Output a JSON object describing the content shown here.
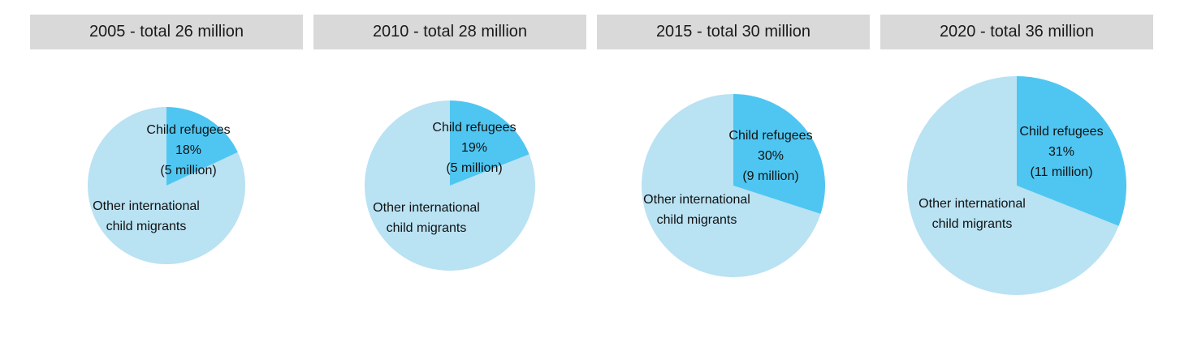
{
  "colors": {
    "refugees": "#4fc6f1",
    "other": "#b9e2f3",
    "header_bg": "#d9d9d9"
  },
  "chart_data": [
    {
      "type": "pie",
      "title": "2005 - total 26 million",
      "total_million": 26,
      "slices": [
        {
          "label_lines": [
            "Child refugees",
            "18%",
            "(5 million)"
          ],
          "percent": 18,
          "value_million": 5
        },
        {
          "label_lines": [
            "Other international",
            "child migrants"
          ],
          "percent": 82
        }
      ]
    },
    {
      "type": "pie",
      "title": "2010 - total 28 million",
      "total_million": 28,
      "slices": [
        {
          "label_lines": [
            "Child refugees",
            "19%",
            "(5 million)"
          ],
          "percent": 19,
          "value_million": 5
        },
        {
          "label_lines": [
            "Other international",
            "child migrants"
          ],
          "percent": 81
        }
      ]
    },
    {
      "type": "pie",
      "title": "2015 - total 30 million",
      "total_million": 30,
      "slices": [
        {
          "label_lines": [
            "Child refugees",
            "30%",
            "(9 million)"
          ],
          "percent": 30,
          "value_million": 9
        },
        {
          "label_lines": [
            "Other international",
            "child migrants"
          ],
          "percent": 70
        }
      ]
    },
    {
      "type": "pie",
      "title": "2020 - total 36 million",
      "total_million": 36,
      "slices": [
        {
          "label_lines": [
            "Child refugees",
            "31%",
            "(11 million)"
          ],
          "percent": 31,
          "value_million": 11
        },
        {
          "label_lines": [
            "Other international",
            "child migrants"
          ],
          "percent": 69
        }
      ]
    }
  ]
}
